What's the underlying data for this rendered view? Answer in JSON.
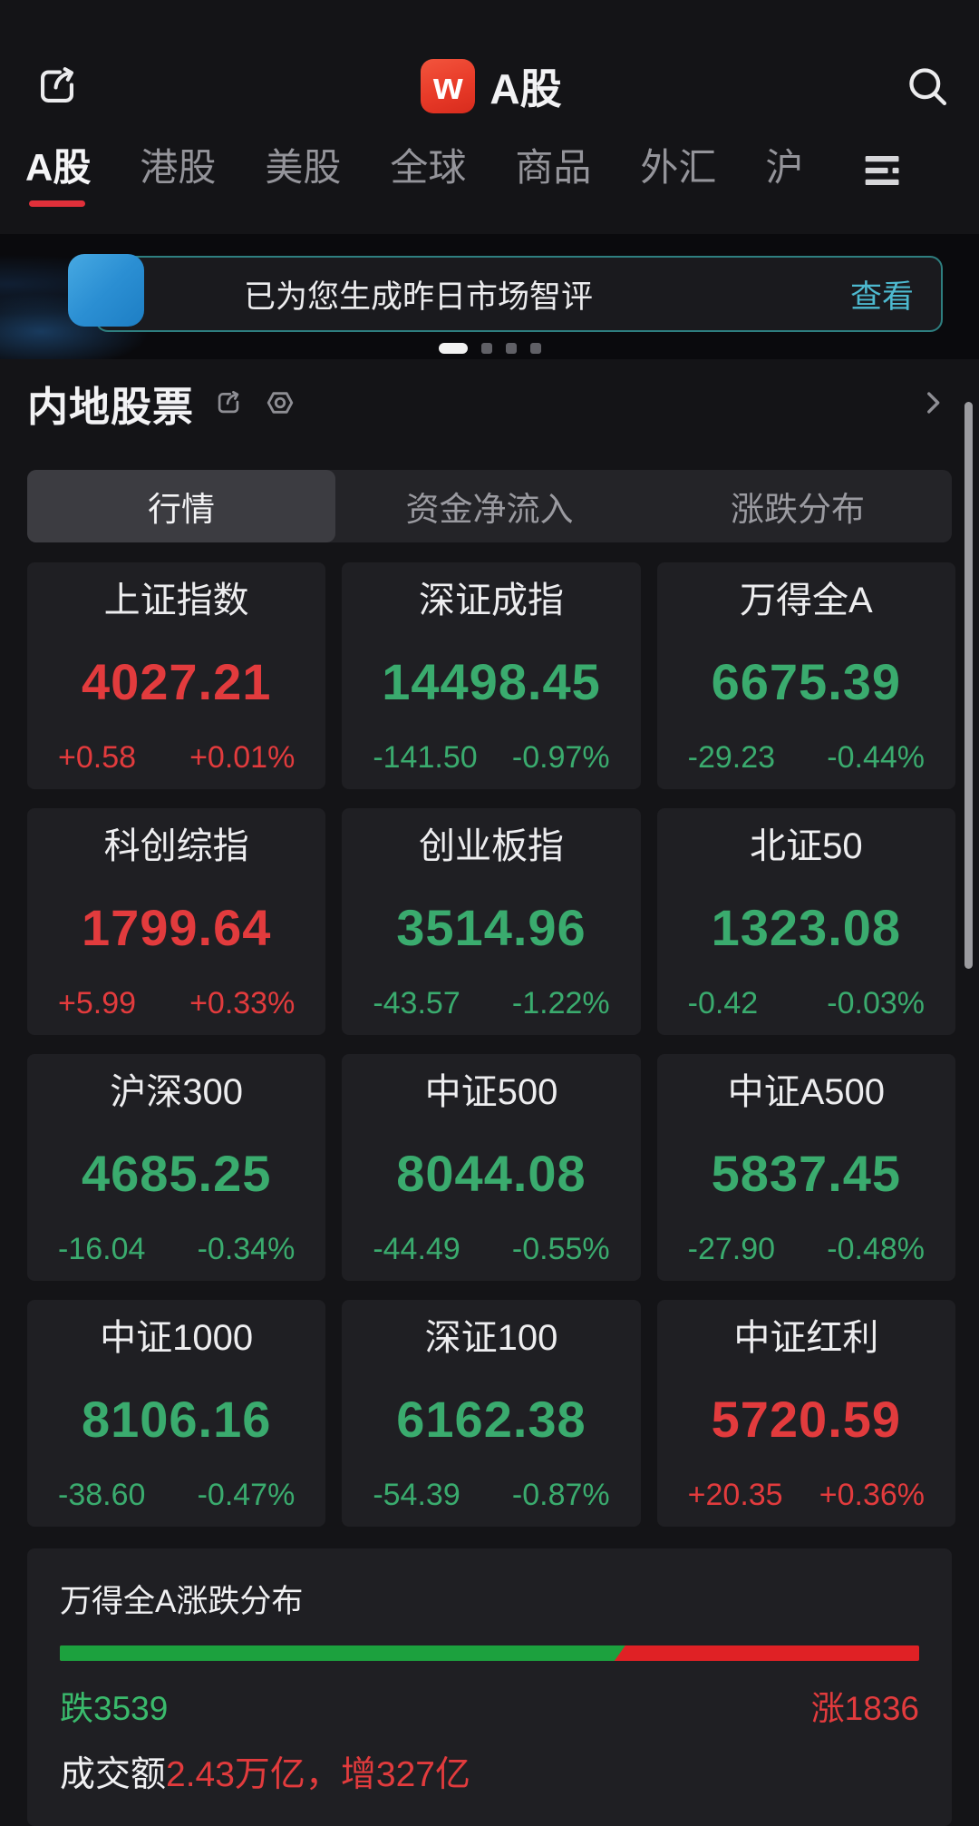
{
  "header": {
    "title": "A股",
    "logo_letter": "w"
  },
  "nav": {
    "tabs": [
      {
        "label": "A股",
        "active": true
      },
      {
        "label": "港股",
        "active": false
      },
      {
        "label": "美股",
        "active": false
      },
      {
        "label": "全球",
        "active": false
      },
      {
        "label": "商品",
        "active": false
      },
      {
        "label": "外汇",
        "active": false
      },
      {
        "label": "沪",
        "active": false,
        "partial": true
      }
    ]
  },
  "banner": {
    "message": "已为您生成昨日市场智评",
    "action_label": "查看"
  },
  "carousel": {
    "dot_count": 4,
    "active_dot": 0
  },
  "section": {
    "title": "内地股票"
  },
  "segmented": {
    "options": [
      "行情",
      "资金净流入",
      "涨跌分布"
    ],
    "active_index": 0
  },
  "indices": [
    {
      "name": "上证指数",
      "value": "4027.21",
      "change": "+0.58",
      "change_pct": "+0.01%",
      "dir": "up"
    },
    {
      "name": "深证成指",
      "value": "14498.45",
      "change": "-141.50",
      "change_pct": "-0.97%",
      "dir": "down"
    },
    {
      "name": "万得全A",
      "value": "6675.39",
      "change": "-29.23",
      "change_pct": "-0.44%",
      "dir": "down"
    },
    {
      "name": "科创综指",
      "value": "1799.64",
      "change": "+5.99",
      "change_pct": "+0.33%",
      "dir": "up"
    },
    {
      "name": "创业板指",
      "value": "3514.96",
      "change": "-43.57",
      "change_pct": "-1.22%",
      "dir": "down"
    },
    {
      "name": "北证50",
      "value": "1323.08",
      "change": "-0.42",
      "change_pct": "-0.03%",
      "dir": "down"
    },
    {
      "name": "沪深300",
      "value": "4685.25",
      "change": "-16.04",
      "change_pct": "-0.34%",
      "dir": "down"
    },
    {
      "name": "中证500",
      "value": "8044.08",
      "change": "-44.49",
      "change_pct": "-0.55%",
      "dir": "down"
    },
    {
      "name": "中证A500",
      "value": "5837.45",
      "change": "-27.90",
      "change_pct": "-0.48%",
      "dir": "down"
    },
    {
      "name": "中证1000",
      "value": "8106.16",
      "change": "-38.60",
      "change_pct": "-0.47%",
      "dir": "down"
    },
    {
      "name": "深证100",
      "value": "6162.38",
      "change": "-54.39",
      "change_pct": "-0.87%",
      "dir": "down"
    },
    {
      "name": "中证红利",
      "value": "5720.59",
      "change": "+20.35",
      "change_pct": "+0.36%",
      "dir": "up"
    }
  ],
  "distribution": {
    "title": "万得全A涨跌分布",
    "down_label": "跌3539",
    "up_label": "涨1836",
    "down_count": 3539,
    "up_count": 1836,
    "down_bar_pct": 65.8,
    "turnover_label": "成交额",
    "turnover_value": "2.43万亿，增327亿"
  },
  "colors": {
    "up_red": "#e23b3d",
    "down_green": "#3aab6e",
    "bar_green": "#1ca13e",
    "bar_red": "#e02125",
    "accent_teal": "#4db9cf",
    "brand_red": "#e83a28",
    "tab_underline": "#e0303a",
    "banner_blue": "#2b8fd3"
  },
  "icons": {
    "share": "box-with-arrow",
    "search": "magnifier",
    "more_tabs": "three-lines",
    "settings": "hexagon-gear",
    "chevron": "chevron-right"
  }
}
